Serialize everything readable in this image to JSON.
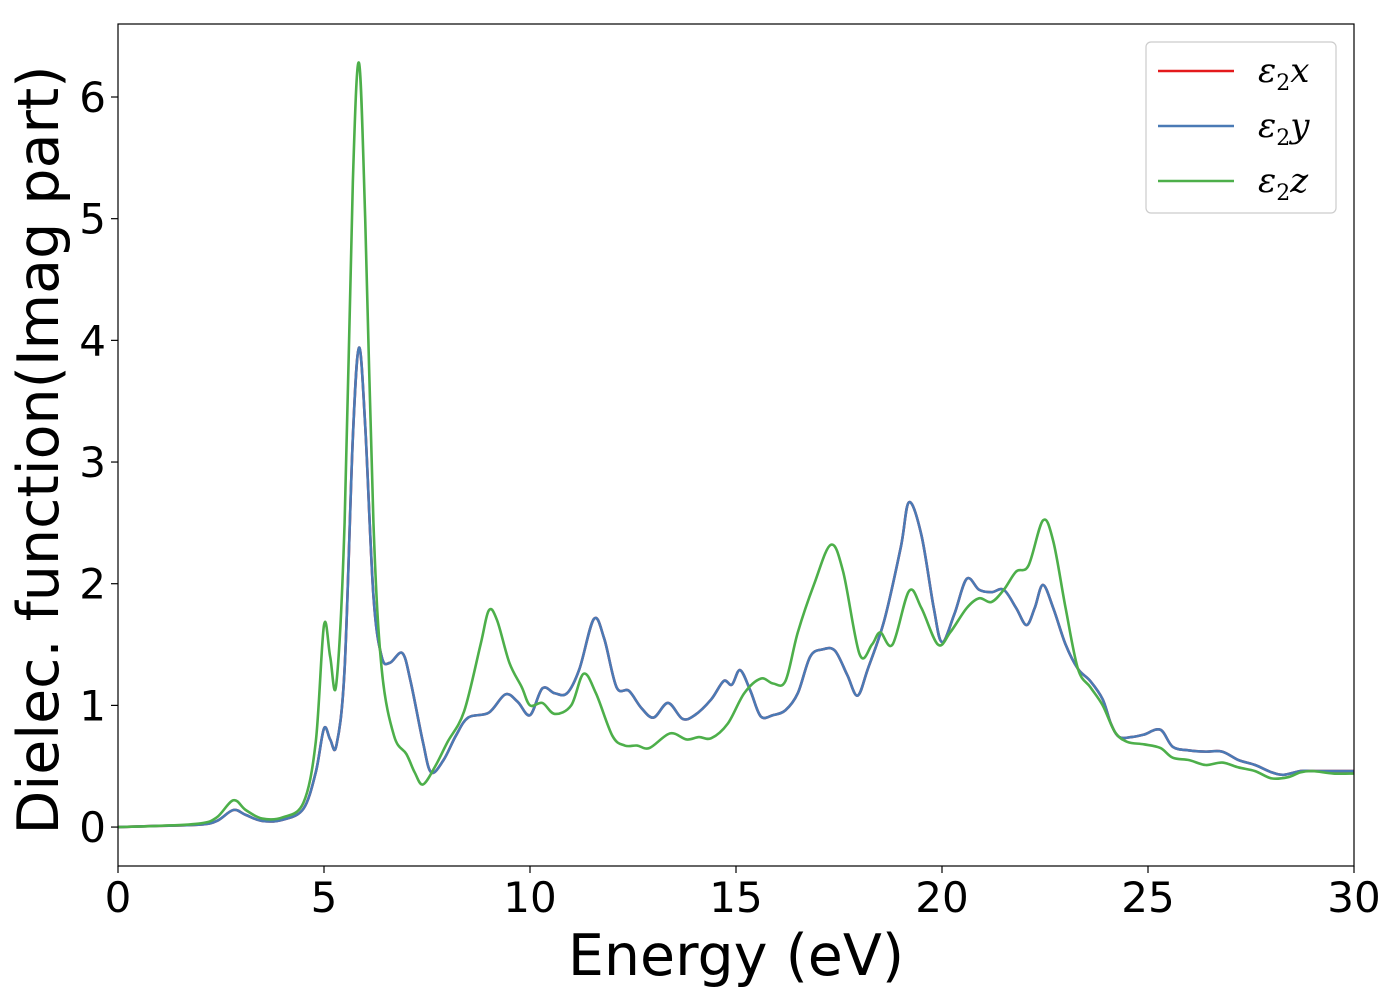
{
  "chart_data": {
    "type": "line",
    "xlabel": "Energy (eV)",
    "ylabel": "Dielec. function(Imag part)",
    "xlim": [
      0,
      30
    ],
    "ylim": [
      -0.32,
      6.6
    ],
    "xticks": [
      0,
      5,
      10,
      15,
      20,
      25,
      30
    ],
    "xtick_labels": [
      "0",
      "5",
      "10",
      "15",
      "20",
      "25",
      "30"
    ],
    "yticks": [
      0,
      1,
      2,
      3,
      4,
      5,
      6
    ],
    "ytick_labels": [
      "0",
      "1",
      "2",
      "3",
      "4",
      "5",
      "6"
    ],
    "grid": false,
    "legend_position": "top-right",
    "series": [
      {
        "name": "ε2x",
        "legend_main": "ε",
        "legend_sub": "2",
        "legend_suffix": "x",
        "color": "#e41a1c",
        "points": [
          [
            0,
            0
          ],
          [
            1,
            0.01
          ],
          [
            2,
            0.02
          ],
          [
            2.4,
            0.05
          ],
          [
            2.8,
            0.14
          ],
          [
            3.1,
            0.1
          ],
          [
            3.5,
            0.05
          ],
          [
            4.0,
            0.06
          ],
          [
            4.5,
            0.15
          ],
          [
            4.8,
            0.45
          ],
          [
            5.0,
            0.81
          ],
          [
            5.15,
            0.72
          ],
          [
            5.3,
            0.67
          ],
          [
            5.5,
            1.3
          ],
          [
            5.7,
            3.2
          ],
          [
            5.85,
            3.94
          ],
          [
            6.0,
            3.3
          ],
          [
            6.2,
            1.9
          ],
          [
            6.4,
            1.4
          ],
          [
            6.6,
            1.35
          ],
          [
            6.9,
            1.43
          ],
          [
            7.1,
            1.2
          ],
          [
            7.4,
            0.7
          ],
          [
            7.6,
            0.45
          ],
          [
            7.9,
            0.55
          ],
          [
            8.2,
            0.75
          ],
          [
            8.5,
            0.9
          ],
          [
            9.0,
            0.94
          ],
          [
            9.4,
            1.09
          ],
          [
            9.7,
            1.03
          ],
          [
            10.0,
            0.92
          ],
          [
            10.3,
            1.14
          ],
          [
            10.6,
            1.1
          ],
          [
            10.9,
            1.1
          ],
          [
            11.2,
            1.3
          ],
          [
            11.55,
            1.71
          ],
          [
            11.8,
            1.55
          ],
          [
            12.1,
            1.15
          ],
          [
            12.4,
            1.12
          ],
          [
            12.7,
            0.98
          ],
          [
            13.0,
            0.9
          ],
          [
            13.35,
            1.02
          ],
          [
            13.7,
            0.89
          ],
          [
            14.0,
            0.92
          ],
          [
            14.4,
            1.05
          ],
          [
            14.7,
            1.2
          ],
          [
            14.9,
            1.17
          ],
          [
            15.1,
            1.29
          ],
          [
            15.35,
            1.12
          ],
          [
            15.6,
            0.91
          ],
          [
            15.9,
            0.92
          ],
          [
            16.2,
            0.96
          ],
          [
            16.5,
            1.1
          ],
          [
            16.8,
            1.4
          ],
          [
            17.1,
            1.46
          ],
          [
            17.4,
            1.45
          ],
          [
            17.7,
            1.25
          ],
          [
            17.95,
            1.08
          ],
          [
            18.2,
            1.3
          ],
          [
            18.6,
            1.7
          ],
          [
            19.0,
            2.3
          ],
          [
            19.2,
            2.67
          ],
          [
            19.5,
            2.4
          ],
          [
            19.8,
            1.8
          ],
          [
            20.0,
            1.52
          ],
          [
            20.3,
            1.75
          ],
          [
            20.6,
            2.04
          ],
          [
            20.9,
            1.95
          ],
          [
            21.2,
            1.93
          ],
          [
            21.5,
            1.95
          ],
          [
            21.8,
            1.8
          ],
          [
            22.05,
            1.66
          ],
          [
            22.25,
            1.8
          ],
          [
            22.45,
            1.99
          ],
          [
            22.7,
            1.8
          ],
          [
            23.0,
            1.5
          ],
          [
            23.3,
            1.3
          ],
          [
            23.6,
            1.2
          ],
          [
            23.9,
            1.05
          ],
          [
            24.1,
            0.85
          ],
          [
            24.3,
            0.74
          ],
          [
            24.6,
            0.74
          ],
          [
            24.9,
            0.76
          ],
          [
            25.3,
            0.8
          ],
          [
            25.6,
            0.66
          ],
          [
            26.0,
            0.63
          ],
          [
            26.4,
            0.62
          ],
          [
            26.8,
            0.62
          ],
          [
            27.2,
            0.55
          ],
          [
            27.6,
            0.51
          ],
          [
            28.0,
            0.45
          ],
          [
            28.3,
            0.43
          ],
          [
            28.7,
            0.46
          ],
          [
            29.0,
            0.46
          ],
          [
            29.5,
            0.46
          ],
          [
            30,
            0.46
          ]
        ]
      },
      {
        "name": "ε2y",
        "legend_main": "ε",
        "legend_sub": "2",
        "legend_suffix": "y",
        "color": "#4a7ab5",
        "points": [
          [
            0,
            0
          ],
          [
            1,
            0.01
          ],
          [
            2,
            0.02
          ],
          [
            2.4,
            0.05
          ],
          [
            2.8,
            0.14
          ],
          [
            3.1,
            0.1
          ],
          [
            3.5,
            0.05
          ],
          [
            4.0,
            0.06
          ],
          [
            4.5,
            0.15
          ],
          [
            4.8,
            0.45
          ],
          [
            5.0,
            0.81
          ],
          [
            5.15,
            0.72
          ],
          [
            5.3,
            0.67
          ],
          [
            5.5,
            1.3
          ],
          [
            5.7,
            3.2
          ],
          [
            5.85,
            3.94
          ],
          [
            6.0,
            3.3
          ],
          [
            6.2,
            1.9
          ],
          [
            6.4,
            1.4
          ],
          [
            6.6,
            1.35
          ],
          [
            6.9,
            1.43
          ],
          [
            7.1,
            1.2
          ],
          [
            7.4,
            0.7
          ],
          [
            7.6,
            0.45
          ],
          [
            7.9,
            0.55
          ],
          [
            8.2,
            0.75
          ],
          [
            8.5,
            0.9
          ],
          [
            9.0,
            0.94
          ],
          [
            9.4,
            1.09
          ],
          [
            9.7,
            1.03
          ],
          [
            10.0,
            0.92
          ],
          [
            10.3,
            1.14
          ],
          [
            10.6,
            1.1
          ],
          [
            10.9,
            1.1
          ],
          [
            11.2,
            1.3
          ],
          [
            11.55,
            1.71
          ],
          [
            11.8,
            1.55
          ],
          [
            12.1,
            1.15
          ],
          [
            12.4,
            1.12
          ],
          [
            12.7,
            0.98
          ],
          [
            13.0,
            0.9
          ],
          [
            13.35,
            1.02
          ],
          [
            13.7,
            0.89
          ],
          [
            14.0,
            0.92
          ],
          [
            14.4,
            1.05
          ],
          [
            14.7,
            1.2
          ],
          [
            14.9,
            1.17
          ],
          [
            15.1,
            1.29
          ],
          [
            15.35,
            1.12
          ],
          [
            15.6,
            0.91
          ],
          [
            15.9,
            0.92
          ],
          [
            16.2,
            0.96
          ],
          [
            16.5,
            1.1
          ],
          [
            16.8,
            1.4
          ],
          [
            17.1,
            1.46
          ],
          [
            17.4,
            1.45
          ],
          [
            17.7,
            1.25
          ],
          [
            17.95,
            1.08
          ],
          [
            18.2,
            1.3
          ],
          [
            18.6,
            1.7
          ],
          [
            19.0,
            2.3
          ],
          [
            19.2,
            2.67
          ],
          [
            19.5,
            2.4
          ],
          [
            19.8,
            1.8
          ],
          [
            20.0,
            1.52
          ],
          [
            20.3,
            1.75
          ],
          [
            20.6,
            2.04
          ],
          [
            20.9,
            1.95
          ],
          [
            21.2,
            1.93
          ],
          [
            21.5,
            1.95
          ],
          [
            21.8,
            1.8
          ],
          [
            22.05,
            1.66
          ],
          [
            22.25,
            1.8
          ],
          [
            22.45,
            1.99
          ],
          [
            22.7,
            1.8
          ],
          [
            23.0,
            1.5
          ],
          [
            23.3,
            1.3
          ],
          [
            23.6,
            1.2
          ],
          [
            23.9,
            1.05
          ],
          [
            24.1,
            0.85
          ],
          [
            24.3,
            0.74
          ],
          [
            24.6,
            0.74
          ],
          [
            24.9,
            0.76
          ],
          [
            25.3,
            0.8
          ],
          [
            25.6,
            0.66
          ],
          [
            26.0,
            0.63
          ],
          [
            26.4,
            0.62
          ],
          [
            26.8,
            0.62
          ],
          [
            27.2,
            0.55
          ],
          [
            27.6,
            0.51
          ],
          [
            28.0,
            0.45
          ],
          [
            28.3,
            0.43
          ],
          [
            28.7,
            0.46
          ],
          [
            29.0,
            0.46
          ],
          [
            29.5,
            0.46
          ],
          [
            30,
            0.46
          ]
        ]
      },
      {
        "name": "ε2z",
        "legend_main": "ε",
        "legend_sub": "2",
        "legend_suffix": "z",
        "color": "#4daf4a",
        "points": [
          [
            0,
            0
          ],
          [
            1,
            0.01
          ],
          [
            2,
            0.03
          ],
          [
            2.4,
            0.08
          ],
          [
            2.8,
            0.22
          ],
          [
            3.1,
            0.14
          ],
          [
            3.5,
            0.07
          ],
          [
            4.0,
            0.08
          ],
          [
            4.5,
            0.2
          ],
          [
            4.8,
            0.7
          ],
          [
            5.0,
            1.66
          ],
          [
            5.15,
            1.4
          ],
          [
            5.3,
            1.18
          ],
          [
            5.5,
            2.5
          ],
          [
            5.7,
            5.3
          ],
          [
            5.85,
            6.28
          ],
          [
            6.0,
            5.0
          ],
          [
            6.2,
            2.5
          ],
          [
            6.4,
            1.3
          ],
          [
            6.7,
            0.75
          ],
          [
            7.0,
            0.6
          ],
          [
            7.2,
            0.45
          ],
          [
            7.4,
            0.35
          ],
          [
            7.7,
            0.5
          ],
          [
            8.0,
            0.7
          ],
          [
            8.4,
            0.95
          ],
          [
            8.8,
            1.5
          ],
          [
            9.0,
            1.78
          ],
          [
            9.2,
            1.7
          ],
          [
            9.5,
            1.35
          ],
          [
            9.8,
            1.15
          ],
          [
            10.0,
            1.0
          ],
          [
            10.3,
            1.02
          ],
          [
            10.6,
            0.93
          ],
          [
            11.0,
            1.0
          ],
          [
            11.3,
            1.26
          ],
          [
            11.6,
            1.1
          ],
          [
            12.0,
            0.75
          ],
          [
            12.3,
            0.67
          ],
          [
            12.6,
            0.67
          ],
          [
            12.9,
            0.65
          ],
          [
            13.4,
            0.77
          ],
          [
            13.8,
            0.72
          ],
          [
            14.1,
            0.74
          ],
          [
            14.4,
            0.73
          ],
          [
            14.8,
            0.85
          ],
          [
            15.2,
            1.1
          ],
          [
            15.6,
            1.22
          ],
          [
            15.9,
            1.18
          ],
          [
            16.2,
            1.2
          ],
          [
            16.5,
            1.6
          ],
          [
            16.9,
            2.0
          ],
          [
            17.3,
            2.32
          ],
          [
            17.6,
            2.1
          ],
          [
            18.0,
            1.42
          ],
          [
            18.3,
            1.5
          ],
          [
            18.5,
            1.6
          ],
          [
            18.8,
            1.5
          ],
          [
            19.2,
            1.94
          ],
          [
            19.5,
            1.8
          ],
          [
            19.9,
            1.5
          ],
          [
            20.2,
            1.6
          ],
          [
            20.6,
            1.8
          ],
          [
            20.9,
            1.88
          ],
          [
            21.2,
            1.85
          ],
          [
            21.5,
            1.95
          ],
          [
            21.8,
            2.1
          ],
          [
            22.1,
            2.15
          ],
          [
            22.45,
            2.52
          ],
          [
            22.7,
            2.35
          ],
          [
            23.0,
            1.8
          ],
          [
            23.3,
            1.3
          ],
          [
            23.6,
            1.15
          ],
          [
            23.9,
            1.0
          ],
          [
            24.2,
            0.78
          ],
          [
            24.5,
            0.7
          ],
          [
            24.9,
            0.68
          ],
          [
            25.3,
            0.65
          ],
          [
            25.6,
            0.57
          ],
          [
            26.0,
            0.55
          ],
          [
            26.4,
            0.51
          ],
          [
            26.8,
            0.53
          ],
          [
            27.2,
            0.49
          ],
          [
            27.6,
            0.46
          ],
          [
            28.0,
            0.4
          ],
          [
            28.4,
            0.41
          ],
          [
            28.7,
            0.45
          ],
          [
            29.0,
            0.46
          ],
          [
            29.5,
            0.44
          ],
          [
            30,
            0.44
          ]
        ]
      }
    ]
  }
}
